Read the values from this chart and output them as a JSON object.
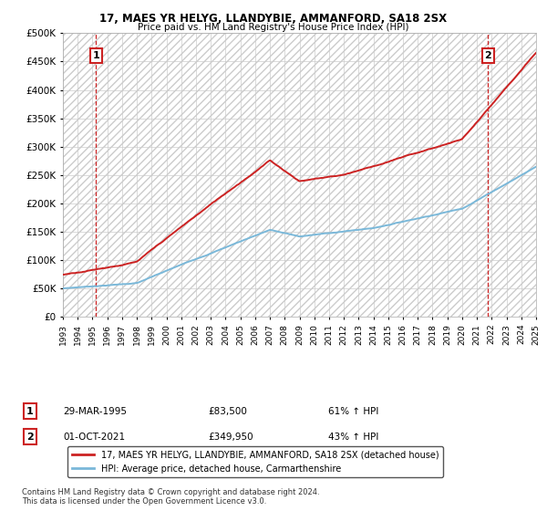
{
  "title1": "17, MAES YR HELYG, LLANDYBIE, AMMANFORD, SA18 2SX",
  "title2": "Price paid vs. HM Land Registry's House Price Index (HPI)",
  "legend_line1": "17, MAES YR HELYG, LLANDYBIE, AMMANFORD, SA18 2SX (detached house)",
  "legend_line2": "HPI: Average price, detached house, Carmarthenshire",
  "annotation1_date": "29-MAR-1995",
  "annotation1_price": "£83,500",
  "annotation1_hpi": "61% ↑ HPI",
  "annotation2_date": "01-OCT-2021",
  "annotation2_price": "£349,950",
  "annotation2_hpi": "43% ↑ HPI",
  "footnote": "Contains HM Land Registry data © Crown copyright and database right 2024.\nThis data is licensed under the Open Government Licence v3.0.",
  "sale1_x": 1995.24,
  "sale1_y": 83500,
  "sale2_x": 2021.75,
  "sale2_y": 349950,
  "hpi_color": "#7ab8d9",
  "price_color": "#cc2222",
  "background_color": "#ffffff",
  "grid_color": "#cccccc",
  "hatch_color": "#cccccc",
  "ylim_min": 0,
  "ylim_max": 500000,
  "xlim_min": 1993,
  "xlim_max": 2025,
  "yticks": [
    0,
    50000,
    100000,
    150000,
    200000,
    250000,
    300000,
    350000,
    400000,
    450000,
    500000
  ],
  "xticks": [
    1993,
    1994,
    1995,
    1996,
    1997,
    1998,
    1999,
    2000,
    2001,
    2002,
    2003,
    2004,
    2005,
    2006,
    2007,
    2008,
    2009,
    2010,
    2011,
    2012,
    2013,
    2014,
    2015,
    2016,
    2017,
    2018,
    2019,
    2020,
    2021,
    2022,
    2023,
    2024,
    2025
  ]
}
